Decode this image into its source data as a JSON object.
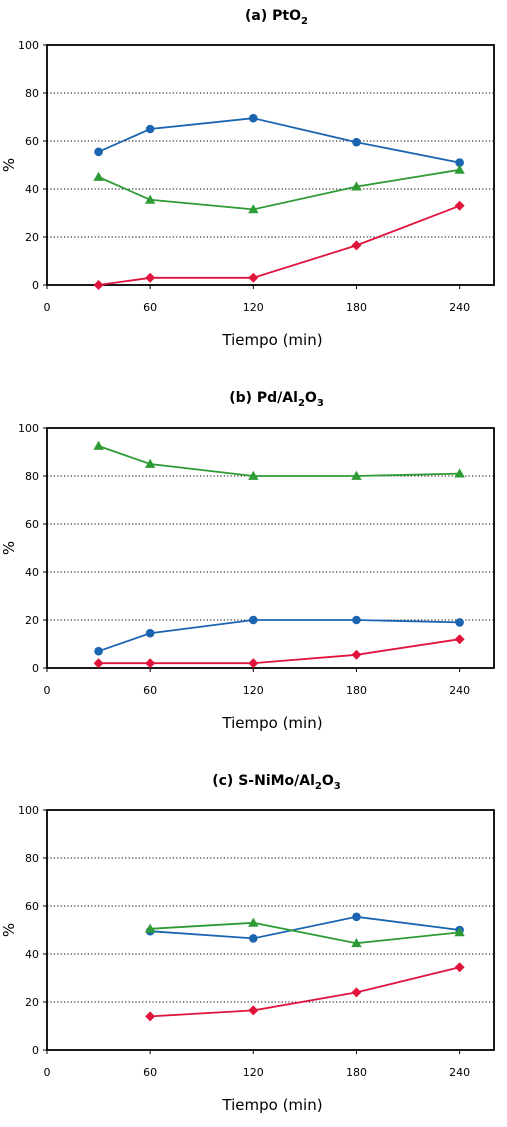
{
  "chart_data": [
    {
      "type": "line",
      "title": "(a) PtO",
      "title_sub": "2",
      "xlabel": "Tiempo (min)",
      "ylabel": "%",
      "xlim": [
        0,
        260
      ],
      "ylim": [
        0,
        100
      ],
      "xticks": [
        0,
        60,
        120,
        180,
        240
      ],
      "yticks": [
        0,
        20,
        40,
        60,
        80,
        100
      ],
      "grid": true,
      "series": [
        {
          "color": "#1a64b0",
          "marker": "circle",
          "x": [
            30,
            60,
            120,
            180,
            240
          ],
          "y": [
            55.5,
            65,
            69.5,
            59.5,
            51
          ]
        },
        {
          "color": "#2e9b34",
          "marker": "triangle",
          "x": [
            30,
            60,
            120,
            180,
            240
          ],
          "y": [
            45,
            35.5,
            31.5,
            41,
            48
          ]
        },
        {
          "color": "#e0143c",
          "marker": "diamond",
          "x": [
            30,
            60,
            120,
            180,
            240
          ],
          "y": [
            0,
            3,
            3,
            16.5,
            33
          ]
        }
      ]
    },
    {
      "type": "line",
      "title": "(b) Pd/Al",
      "title_parts": [
        "2",
        "O",
        "3"
      ],
      "xlabel": "Tiempo (min)",
      "ylabel": "%",
      "xlim": [
        0,
        260
      ],
      "ylim": [
        0,
        100
      ],
      "xticks": [
        0,
        60,
        120,
        180,
        240
      ],
      "yticks": [
        0,
        20,
        40,
        60,
        80,
        100
      ],
      "grid": true,
      "series": [
        {
          "color": "#2e9b34",
          "marker": "triangle",
          "x": [
            30,
            60,
            120,
            180,
            240
          ],
          "y": [
            92.5,
            85,
            80,
            80,
            81
          ]
        },
        {
          "color": "#1a64b0",
          "marker": "circle",
          "x": [
            30,
            60,
            120,
            180,
            240
          ],
          "y": [
            7,
            14.5,
            20,
            20,
            19
          ]
        },
        {
          "color": "#e0143c",
          "marker": "diamond",
          "x": [
            30,
            60,
            120,
            180,
            240
          ],
          "y": [
            2,
            2,
            2,
            5.5,
            12
          ]
        }
      ]
    },
    {
      "type": "line",
      "title": "(c) S-NiMo/Al",
      "title_parts": [
        "2",
        "O",
        "3"
      ],
      "xlabel": "Tiempo (min)",
      "ylabel": "%",
      "xlim": [
        0,
        260
      ],
      "ylim": [
        0,
        100
      ],
      "xticks": [
        0,
        60,
        120,
        180,
        240
      ],
      "yticks": [
        0,
        20,
        40,
        60,
        80,
        100
      ],
      "grid": true,
      "series": [
        {
          "color": "#1a64b0",
          "marker": "circle",
          "x": [
            60,
            120,
            180,
            240
          ],
          "y": [
            49.5,
            46.5,
            55.5,
            50
          ]
        },
        {
          "color": "#2e9b34",
          "marker": "triangle",
          "x": [
            60,
            120,
            180,
            240
          ],
          "y": [
            50.5,
            53,
            44.5,
            49
          ]
        },
        {
          "color": "#e0143c",
          "marker": "diamond",
          "x": [
            60,
            120,
            180,
            240
          ],
          "y": [
            14,
            16.5,
            24,
            34.5
          ]
        }
      ]
    }
  ]
}
